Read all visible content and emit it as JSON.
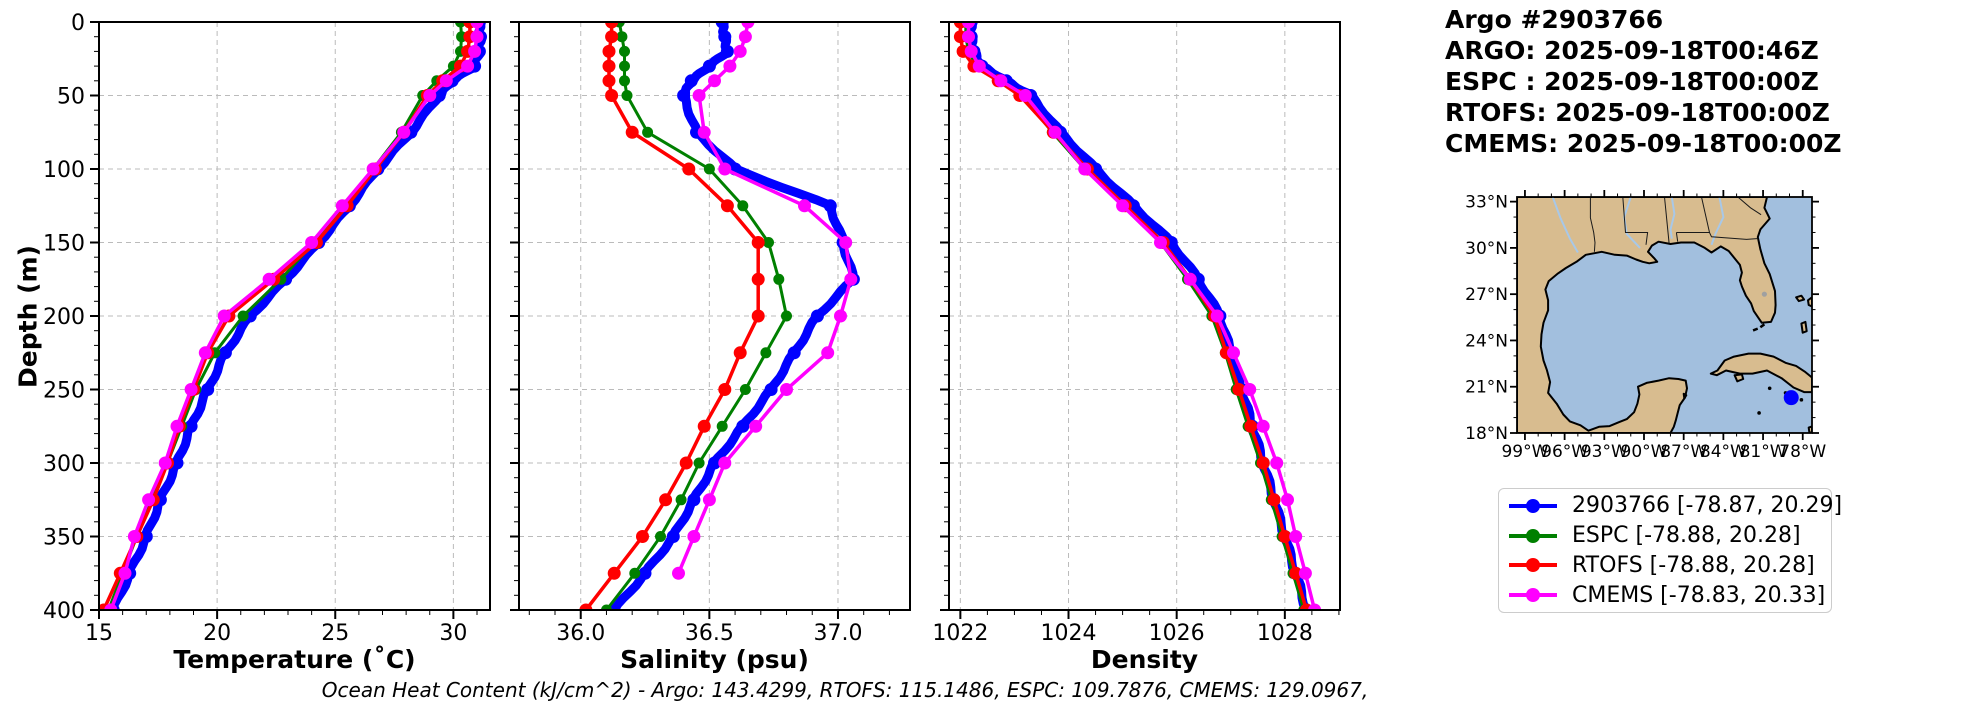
{
  "header": {
    "lines": [
      "Argo #2903766",
      "ARGO: 2025-09-18T00:46Z",
      "ESPC : 2025-09-18T00:00Z",
      "RTOFS: 2025-09-18T00:00Z",
      "CMEMS: 2025-09-18T00:00Z"
    ]
  },
  "chart_data": {
    "type": "line",
    "subtype": "depth-profile-comparison",
    "depth_axis": {
      "label": "Depth (m)",
      "lim": [
        0,
        400
      ],
      "ticks": [
        0,
        50,
        100,
        150,
        200,
        250,
        300,
        350,
        400
      ],
      "tick_labels": [
        "0",
        "50",
        "100",
        "150",
        "200",
        "250",
        "300",
        "350",
        "400"
      ],
      "minor_step": 10
    },
    "panels": [
      {
        "id": "temperature",
        "xlabel": "Temperature (˚C)",
        "xlim": [
          15,
          31.55
        ],
        "xticks": [
          15,
          20,
          25,
          30
        ],
        "xtick_labels": [
          "15",
          "20",
          "25",
          "30"
        ],
        "minor_step": 1
      },
      {
        "id": "salinity",
        "xlabel": "Salinity (psu)",
        "xlim": [
          35.76,
          37.28
        ],
        "xticks": [
          36.0,
          36.5,
          37.0
        ],
        "xtick_labels": [
          "36.0",
          "36.5",
          "37.0"
        ],
        "minor_step": 0.1
      },
      {
        "id": "density",
        "xlabel": "Density",
        "xlim": [
          1021.79,
          1029.02
        ],
        "xticks": [
          1022,
          1024,
          1026,
          1028
        ],
        "xtick_labels": [
          "1022",
          "1024",
          "1026",
          "1028"
        ],
        "minor_step": 0.5
      }
    ],
    "depths": [
      0,
      10,
      20,
      30,
      40,
      50,
      75,
      100,
      125,
      150,
      175,
      200,
      225,
      250,
      275,
      300,
      325,
      350,
      375,
      400
    ],
    "series": [
      {
        "name": "2903766",
        "color": "#0000ff",
        "line_width": 9,
        "marker_size": 6.5,
        "values": {
          "temperature": [
            31.1,
            31.15,
            31.1,
            30.9,
            29.95,
            29.4,
            28.2,
            26.8,
            25.6,
            24.3,
            22.9,
            21.4,
            20.35,
            19.6,
            18.9,
            18.3,
            17.6,
            17.0,
            16.3,
            15.6
          ],
          "salinity": [
            36.55,
            36.56,
            36.57,
            36.5,
            36.43,
            36.4,
            36.45,
            36.6,
            36.97,
            37.02,
            37.06,
            36.92,
            36.83,
            36.74,
            36.63,
            36.52,
            36.44,
            36.36,
            36.25,
            36.13
          ],
          "density": [
            1022.2,
            1022.2,
            1022.25,
            1022.4,
            1022.85,
            1023.3,
            1023.85,
            1024.5,
            1025.2,
            1025.9,
            1026.4,
            1026.8,
            1027.0,
            1027.2,
            1027.4,
            1027.6,
            1027.8,
            1028.0,
            1028.2,
            1028.4
          ]
        }
      },
      {
        "name": "ESPC",
        "color": "#008000",
        "line_width": 3,
        "marker_size": 5.5,
        "values": {
          "temperature": [
            30.3,
            30.35,
            30.3,
            30.0,
            29.3,
            28.7,
            27.8,
            26.6,
            25.4,
            24.1,
            22.7,
            21.1,
            19.9,
            19.1,
            18.5,
            17.9,
            17.2,
            16.6,
            16.0,
            15.4
          ],
          "salinity": [
            36.15,
            36.16,
            36.17,
            36.17,
            36.17,
            36.18,
            36.26,
            36.5,
            36.63,
            36.73,
            36.77,
            36.8,
            36.72,
            36.64,
            36.55,
            36.46,
            36.39,
            36.31,
            36.21,
            36.1
          ],
          "density": [
            1022.1,
            1022.1,
            1022.15,
            1022.3,
            1022.7,
            1023.15,
            1023.7,
            1024.3,
            1025.0,
            1025.7,
            1026.2,
            1026.65,
            1026.9,
            1027.1,
            1027.32,
            1027.55,
            1027.75,
            1027.95,
            1028.15,
            1028.35
          ]
        }
      },
      {
        "name": "RTOFS",
        "color": "#ff0000",
        "line_width": 3.5,
        "marker_size": 6.5,
        "values": {
          "temperature": [
            30.7,
            30.7,
            30.6,
            30.3,
            29.55,
            28.9,
            27.9,
            26.7,
            25.5,
            24.2,
            22.4,
            20.5,
            19.6,
            19.0,
            18.4,
            17.9,
            17.3,
            16.6,
            15.9,
            15.2
          ],
          "salinity": [
            36.12,
            36.12,
            36.11,
            36.11,
            36.11,
            36.12,
            36.2,
            36.42,
            36.57,
            36.69,
            36.69,
            36.69,
            36.62,
            36.56,
            36.48,
            36.41,
            36.33,
            36.24,
            36.13,
            36.02
          ],
          "density": [
            1022.0,
            1022.0,
            1022.05,
            1022.25,
            1022.7,
            1023.1,
            1023.72,
            1024.35,
            1025.05,
            1025.75,
            1026.25,
            1026.7,
            1026.92,
            1027.15,
            1027.37,
            1027.6,
            1027.8,
            1028.0,
            1028.2,
            1028.4
          ]
        }
      },
      {
        "name": "CMEMS",
        "color": "#ff00ff",
        "line_width": 3.5,
        "marker_size": 6.5,
        "values": {
          "temperature": [
            31.0,
            31.0,
            30.9,
            30.6,
            29.7,
            29.0,
            27.9,
            26.6,
            25.3,
            24.0,
            22.2,
            20.3,
            19.5,
            18.9,
            18.3,
            17.8,
            17.1,
            16.5,
            16.1,
            15.5
          ],
          "salinity": [
            36.65,
            36.64,
            36.62,
            36.58,
            36.52,
            36.46,
            36.48,
            36.56,
            36.87,
            37.03,
            37.05,
            37.01,
            36.96,
            36.8,
            36.68,
            36.56,
            36.5,
            36.44,
            36.38,
            null
          ],
          "density": [
            1022.15,
            1022.15,
            1022.2,
            1022.35,
            1022.75,
            1023.2,
            1023.75,
            1024.3,
            1025.0,
            1025.7,
            1026.25,
            1026.75,
            1027.05,
            1027.35,
            1027.6,
            1027.85,
            1028.05,
            1028.2,
            1028.38,
            1028.55
          ]
        }
      }
    ]
  },
  "map": {
    "extent": {
      "lon_min": -99.6,
      "lon_max": -77.3,
      "lat_min": 18.0,
      "lat_max": 33.3
    },
    "lat_ticks": [
      {
        "label": "33°N",
        "value": 33
      },
      {
        "label": "30°N",
        "value": 30
      },
      {
        "label": "27°N",
        "value": 27
      },
      {
        "label": "24°N",
        "value": 24
      },
      {
        "label": "21°N",
        "value": 21
      },
      {
        "label": "18°N",
        "value": 18
      }
    ],
    "lon_ticks": [
      {
        "label": "99°W",
        "value": -99
      },
      {
        "label": "96°W",
        "value": -96
      },
      {
        "label": "93°W",
        "value": -93
      },
      {
        "label": "90°W",
        "value": -90
      },
      {
        "label": "87°W",
        "value": -87
      },
      {
        "label": "84°W",
        "value": -84
      },
      {
        "label": "81°W",
        "value": -81
      },
      {
        "label": "78°W",
        "value": -78
      }
    ],
    "colors": {
      "land": "#d8bc8f",
      "ocean": "#a2bfde",
      "river": "#a8c8e8",
      "coast": "#000000",
      "lake": "#a0a0a0"
    },
    "marker": {
      "lon": -78.87,
      "lat": 20.29,
      "color": "#0000ff"
    }
  },
  "legend": {
    "items": [
      {
        "label": "2903766 [-78.87, 20.29]",
        "color": "#0000ff"
      },
      {
        "label": "ESPC [-78.88, 20.28]",
        "color": "#008000"
      },
      {
        "label": "RTOFS [-78.88, 20.28]",
        "color": "#ff0000"
      },
      {
        "label": "CMEMS [-78.83, 20.33]",
        "color": "#ff00ff"
      }
    ]
  },
  "footer": {
    "ohc_note": "Ocean Heat Content (kJ/cm^2) - Argo: 143.4299,  RTOFS: 115.1486,  ESPC: 109.7876,  CMEMS: 129.0967,"
  }
}
